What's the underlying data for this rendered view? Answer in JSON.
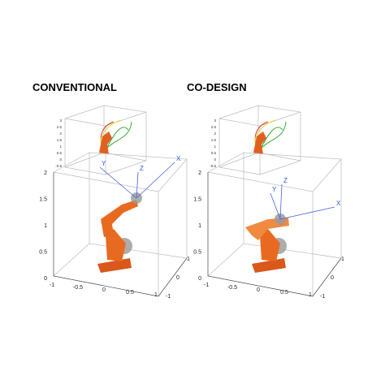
{
  "panels": [
    {
      "title": "CONVENTIONAL",
      "main": {
        "zticks": [
          "2",
          "1.5",
          "1",
          "0.5",
          "0"
        ],
        "xticks": [
          "-1",
          "-0.5",
          "0",
          "0.5",
          "1"
        ],
        "yticks": [
          "1",
          "0",
          "-1"
        ],
        "frame_labels": [
          "X",
          "Y",
          "Z"
        ]
      },
      "inset": {
        "zticks": [
          "3",
          "2.5",
          "2",
          "1.5",
          "1",
          "0.5",
          "0",
          "-0.5"
        ]
      }
    },
    {
      "title": "CO-DESIGN",
      "main": {
        "zticks": [
          "2",
          "1.5",
          "1",
          "0.5",
          "0"
        ],
        "xticks": [
          "-1",
          "-0.5",
          "0",
          "0.5",
          "1"
        ],
        "yticks": [
          "1",
          "0",
          "-1"
        ],
        "frame_labels": [
          "X",
          "Y",
          "Z"
        ]
      },
      "inset": {
        "zticks": [
          "3",
          "2.5",
          "2",
          "1.5",
          "1",
          "0.5",
          "0",
          "-0.5"
        ]
      }
    }
  ]
}
